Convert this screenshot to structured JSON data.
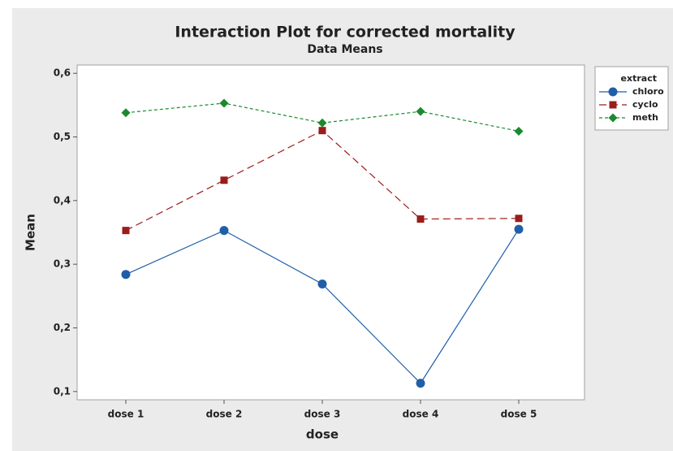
{
  "chart_data": {
    "type": "line",
    "title": "Interaction Plot for corrected mortality",
    "subtitle": "Data Means",
    "x_label": "dose",
    "y_label": "Mean",
    "legend_title": "extract",
    "legend_position": "right",
    "categories": [
      "dose 1",
      "dose 2",
      "dose 3",
      "dose 4",
      "dose 5"
    ],
    "series": [
      {
        "name": "chloro",
        "color": "#1f5fa8",
        "marker": "circle",
        "linestyle": "solid",
        "values": [
          0.284,
          0.353,
          0.269,
          0.113,
          0.355
        ]
      },
      {
        "name": "cyclo",
        "color": "#9b1c1c",
        "marker": "square",
        "linestyle": "long-dash",
        "values": [
          0.353,
          0.432,
          0.51,
          0.371,
          0.372
        ]
      },
      {
        "name": "meth",
        "color": "#1b8a2e",
        "marker": "diamond",
        "linestyle": "short-dash",
        "values": [
          0.538,
          0.553,
          0.522,
          0.54,
          0.509
        ]
      }
    ],
    "ylim": [
      0.087,
      0.613
    ],
    "yticks": [
      {
        "value": 0.1,
        "label": "0,1"
      },
      {
        "value": 0.2,
        "label": "0,2"
      },
      {
        "value": 0.3,
        "label": "0,3"
      },
      {
        "value": 0.4,
        "label": "0,4"
      },
      {
        "value": 0.5,
        "label": "0,5"
      },
      {
        "value": 0.6,
        "label": "0,6"
      }
    ],
    "grid": false
  }
}
